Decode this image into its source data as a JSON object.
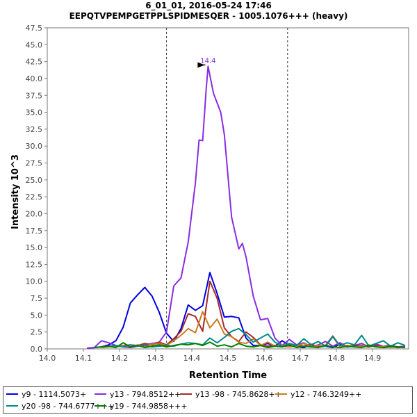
{
  "chart_data": {
    "type": "line",
    "title": "6_01_01, 2016-05-24 17:46",
    "subtitle": "EEPQTVPEMPGETPPLSPIDMESQER - 1005.1076+++ (heavy)",
    "xlabel": "Retention Time",
    "ylabel": "Intensity 10^3",
    "xlim": [
      14.0,
      15.0
    ],
    "ylim": [
      0,
      47.5
    ],
    "xticks": [
      "14.0",
      "14.1",
      "14.2",
      "14.3",
      "14.4",
      "14.5",
      "14.6",
      "14.7",
      "14.8",
      "14.9"
    ],
    "yticks": [
      "0.0",
      "2.5",
      "5.0",
      "7.5",
      "10.0",
      "12.5",
      "15.0",
      "17.5",
      "20.0",
      "22.5",
      "25.0",
      "27.5",
      "30.0",
      "32.5",
      "35.0",
      "37.5",
      "40.0",
      "42.5",
      "45.0",
      "47.5"
    ],
    "grid": false,
    "legend_position": "bottom",
    "boundaries": [
      14.33,
      14.665
    ],
    "peak_annotation": {
      "label": "14.4",
      "x": 14.445,
      "y": 41.8
    },
    "series": [
      {
        "name": "y9 - 1114.5073+",
        "color": "#0000e0",
        "x": [
          14.11,
          14.13,
          14.15,
          14.17,
          14.19,
          14.21,
          14.23,
          14.25,
          14.27,
          14.29,
          14.31,
          14.33,
          14.35,
          14.37,
          14.39,
          14.41,
          14.43,
          14.45,
          14.47,
          14.49,
          14.51,
          14.53,
          14.55,
          14.57,
          14.59,
          14.61,
          14.63,
          14.65,
          14.67,
          14.69,
          14.71,
          14.73,
          14.75,
          14.77,
          14.79,
          14.81,
          14.83,
          14.85,
          14.87,
          14.89,
          14.91,
          14.93,
          14.95,
          14.97,
          14.99
        ],
        "y": [
          0.1,
          0.2,
          0.3,
          0.6,
          1.2,
          3.2,
          6.8,
          8.0,
          9.1,
          7.8,
          5.4,
          2.3,
          1.1,
          3.0,
          6.5,
          5.7,
          6.4,
          11.3,
          8.2,
          4.7,
          4.8,
          4.6,
          1.6,
          0.5,
          0.5,
          0.8,
          0.4,
          1.2,
          0.5,
          0.3,
          0.2,
          0.6,
          0.3,
          0.4,
          0.2,
          0.7,
          0.3,
          0.4,
          0.5,
          0.3,
          0.6,
          0.2,
          0.3,
          0.2,
          0.3
        ]
      },
      {
        "name": "y13 - 794.8512++",
        "color": "#8a2be2",
        "x": [
          14.11,
          14.13,
          14.15,
          14.17,
          14.19,
          14.21,
          14.23,
          14.25,
          14.27,
          14.29,
          14.31,
          14.33,
          14.35,
          14.37,
          14.39,
          14.41,
          14.42,
          14.43,
          14.44,
          14.445,
          14.46,
          14.48,
          14.49,
          14.51,
          14.53,
          14.54,
          14.55,
          14.57,
          14.59,
          14.61,
          14.63,
          14.65,
          14.67,
          14.69,
          14.71,
          14.73,
          14.75,
          14.77,
          14.79,
          14.81,
          14.83,
          14.85,
          14.87,
          14.89,
          14.91,
          14.93,
          14.95,
          14.97,
          14.99
        ],
        "y": [
          0.1,
          0.2,
          1.2,
          0.9,
          0.5,
          0.3,
          0.2,
          0.4,
          0.6,
          0.8,
          1.0,
          2.5,
          9.3,
          10.5,
          15.8,
          24.6,
          30.9,
          30.8,
          38.6,
          41.8,
          37.8,
          35.0,
          31.7,
          19.5,
          14.8,
          15.6,
          13.6,
          7.8,
          4.3,
          4.5,
          1.6,
          0.5,
          1.4,
          0.6,
          0.9,
          0.3,
          0.6,
          1.1,
          0.4,
          0.9,
          0.3,
          0.5,
          0.8,
          0.3,
          0.7,
          0.4,
          0.5,
          0.3,
          0.4
        ]
      },
      {
        "name": "y13 -98 - 745.8628++",
        "color": "#a52a2a",
        "x": [
          14.17,
          14.19,
          14.21,
          14.23,
          14.25,
          14.27,
          14.29,
          14.31,
          14.33,
          14.35,
          14.37,
          14.39,
          14.41,
          14.43,
          14.45,
          14.47,
          14.49,
          14.51,
          14.53,
          14.55,
          14.57,
          14.59,
          14.61,
          14.63,
          14.65,
          14.67,
          14.69,
          14.71,
          14.73,
          14.75,
          14.77,
          14.79,
          14.81,
          14.83,
          14.85,
          14.87,
          14.89,
          14.91,
          14.93,
          14.95,
          14.97,
          14.99
        ],
        "y": [
          0.4,
          0.3,
          0.5,
          0.6,
          0.5,
          0.8,
          0.6,
          1.0,
          0.6,
          1.5,
          2.6,
          5.2,
          4.8,
          2.6,
          10.0,
          7.5,
          3.1,
          1.8,
          1.1,
          2.5,
          1.7,
          0.6,
          0.4,
          0.5,
          0.4,
          0.3,
          0.5,
          0.4,
          0.7,
          0.3,
          0.5,
          1.9,
          0.4,
          0.3,
          0.6,
          0.4,
          0.3,
          0.5,
          0.3,
          0.4,
          0.2,
          0.3
        ]
      },
      {
        "name": "y12 - 746.3249++",
        "color": "#cc7a1f",
        "x": [
          14.15,
          14.17,
          14.19,
          14.21,
          14.23,
          14.25,
          14.27,
          14.29,
          14.31,
          14.33,
          14.35,
          14.37,
          14.39,
          14.41,
          14.43,
          14.45,
          14.47,
          14.49,
          14.51,
          14.53,
          14.55,
          14.57,
          14.59,
          14.61,
          14.63,
          14.65,
          14.67,
          14.69,
          14.71,
          14.73,
          14.75,
          14.77,
          14.79,
          14.81,
          14.83,
          14.85,
          14.87,
          14.89,
          14.91,
          14.93,
          14.95,
          14.97,
          14.99
        ],
        "y": [
          0.2,
          0.3,
          0.4,
          0.5,
          0.3,
          0.6,
          0.4,
          0.7,
          0.8,
          0.5,
          1.2,
          2.0,
          3.0,
          2.4,
          5.5,
          3.1,
          4.4,
          2.2,
          1.8,
          1.0,
          0.8,
          1.5,
          0.5,
          1.0,
          0.4,
          0.6,
          0.3,
          0.4,
          0.8,
          0.3,
          0.5,
          0.4,
          1.8,
          0.3,
          0.5,
          0.3,
          0.4,
          0.6,
          0.3,
          0.4,
          0.2,
          0.3,
          0.2
        ]
      },
      {
        "name": "y20 -98 - 744.6777+++",
        "color": "#008b8b",
        "x": [
          14.15,
          14.17,
          14.19,
          14.21,
          14.23,
          14.25,
          14.27,
          14.29,
          14.31,
          14.33,
          14.35,
          14.37,
          14.39,
          14.41,
          14.43,
          14.45,
          14.47,
          14.49,
          14.51,
          14.53,
          14.55,
          14.57,
          14.59,
          14.61,
          14.63,
          14.65,
          14.67,
          14.69,
          14.71,
          14.73,
          14.75,
          14.77,
          14.79,
          14.81,
          14.83,
          14.85,
          14.87,
          14.89,
          14.91,
          14.93,
          14.95,
          14.97,
          14.99
        ],
        "y": [
          0.3,
          0.4,
          0.5,
          0.3,
          0.6,
          0.4,
          0.5,
          0.3,
          0.4,
          0.5,
          0.4,
          0.7,
          0.9,
          0.8,
          0.6,
          1.6,
          0.9,
          1.7,
          2.6,
          3.0,
          2.1,
          1.0,
          1.6,
          2.2,
          1.0,
          0.4,
          0.8,
          0.5,
          1.5,
          0.6,
          1.1,
          0.4,
          1.8,
          0.5,
          0.9,
          0.6,
          2.0,
          0.4,
          0.8,
          1.2,
          0.4,
          0.9,
          0.5
        ]
      },
      {
        "name": "y19 - 744.9858+++",
        "color": "#008000",
        "x": [
          14.13,
          14.15,
          14.17,
          14.19,
          14.21,
          14.23,
          14.25,
          14.27,
          14.29,
          14.31,
          14.33,
          14.35,
          14.37,
          14.39,
          14.41,
          14.43,
          14.45,
          14.47,
          14.49,
          14.51,
          14.53,
          14.55,
          14.57,
          14.59,
          14.61,
          14.63,
          14.65,
          14.67,
          14.69,
          14.71,
          14.73,
          14.75,
          14.77,
          14.79,
          14.81,
          14.83,
          14.85,
          14.87,
          14.89,
          14.91,
          14.93,
          14.95,
          14.97,
          14.99
        ],
        "y": [
          0.2,
          0.3,
          0.4,
          0.2,
          0.9,
          0.3,
          0.5,
          0.2,
          0.4,
          0.6,
          0.3,
          0.5,
          0.7,
          0.6,
          0.8,
          0.5,
          1.0,
          0.4,
          0.6,
          0.3,
          0.8,
          0.4,
          0.3,
          0.5,
          0.2,
          0.4,
          0.3,
          0.6,
          0.2,
          0.4,
          0.3,
          0.2,
          0.5,
          0.3,
          0.2,
          0.4,
          0.3,
          0.2,
          0.5,
          0.3,
          0.2,
          0.4,
          0.3,
          0.2
        ]
      }
    ]
  }
}
